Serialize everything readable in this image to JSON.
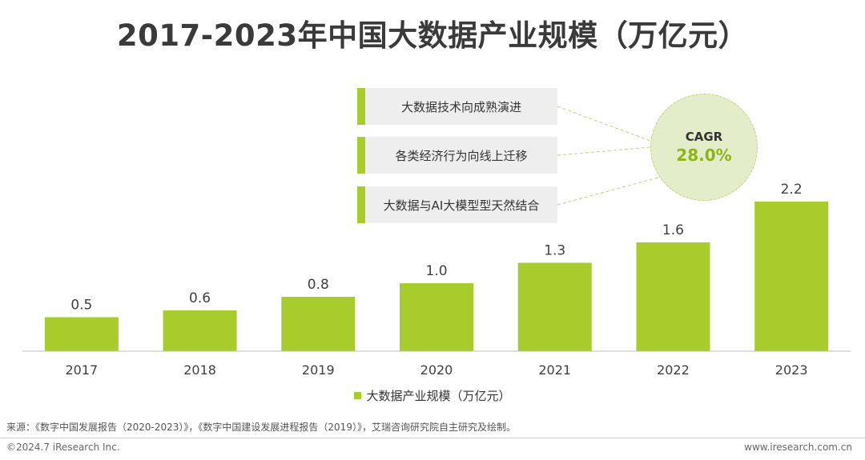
{
  "title": "2017-2023年中国大数据产业规模（万亿元）",
  "drivers": [
    "大数据技术向成熟演进",
    "各类经济行为向线上迁移",
    "大数据与AI大模型型天然结合"
  ],
  "cagr": {
    "label": "CAGR",
    "value": "28.0%"
  },
  "legend": {
    "label": "大数据产业规模（万亿元）"
  },
  "source": "来源：《数字中国发展报告（2020-2023）》，《数字中国建设发展进程报告（2019）》，艾瑞咨询研究院自主研究及绘制。",
  "copyright": "©2024.7 iResearch Inc.",
  "website": "www.iresearch.com.cn",
  "colors": {
    "bar": "#a7cc2b",
    "axis": "#bfbfbf",
    "text": "#404040"
  },
  "chart_data": {
    "type": "bar",
    "categories": [
      "2017",
      "2018",
      "2019",
      "2020",
      "2021",
      "2022",
      "2023"
    ],
    "values": [
      0.5,
      0.6,
      0.8,
      1.0,
      1.3,
      1.6,
      2.2
    ],
    "value_labels": [
      "0.5",
      "0.6",
      "0.8",
      "1.0",
      "1.3",
      "1.6",
      "2.2"
    ],
    "title": "2017-2023年中国大数据产业规模（万亿元）",
    "xlabel": "",
    "ylabel": "",
    "ylim": [
      0,
      2.2
    ],
    "grid": false,
    "legend_position": "bottom",
    "series": [
      {
        "name": "大数据产业规模（万亿元）",
        "values": [
          0.5,
          0.6,
          0.8,
          1.0,
          1.3,
          1.6,
          2.2
        ]
      }
    ]
  }
}
